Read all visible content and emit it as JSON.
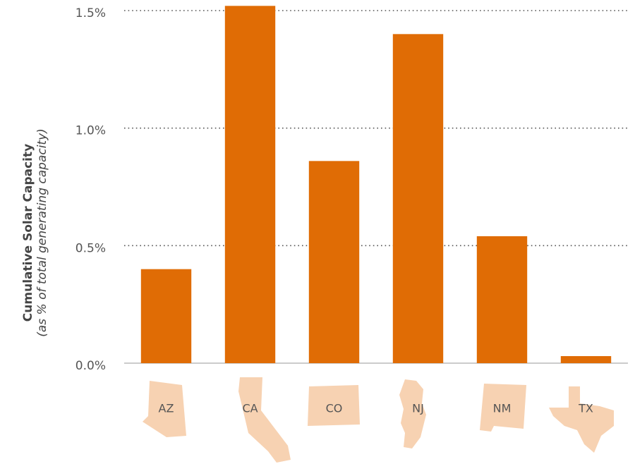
{
  "chart_data": {
    "type": "bar",
    "y_axis_title": "Cumulative Solar Capacity",
    "y_axis_subtitle": "(as % of total generating capacity)",
    "categories": [
      "AZ",
      "CA",
      "CO",
      "NJ",
      "NM",
      "TX"
    ],
    "values": [
      0.4,
      1.52,
      0.86,
      1.4,
      0.54,
      0.03
    ],
    "color": "#e06c05",
    "ylim": [
      0,
      1.5
    ],
    "yticks": [
      {
        "value": 0,
        "label": "0.0%"
      },
      {
        "value": 0.5,
        "label": "0.5%"
      },
      {
        "value": 1.0,
        "label": "1.0%"
      },
      {
        "value": 1.5,
        "label": "1.5%"
      }
    ],
    "grid": true
  }
}
